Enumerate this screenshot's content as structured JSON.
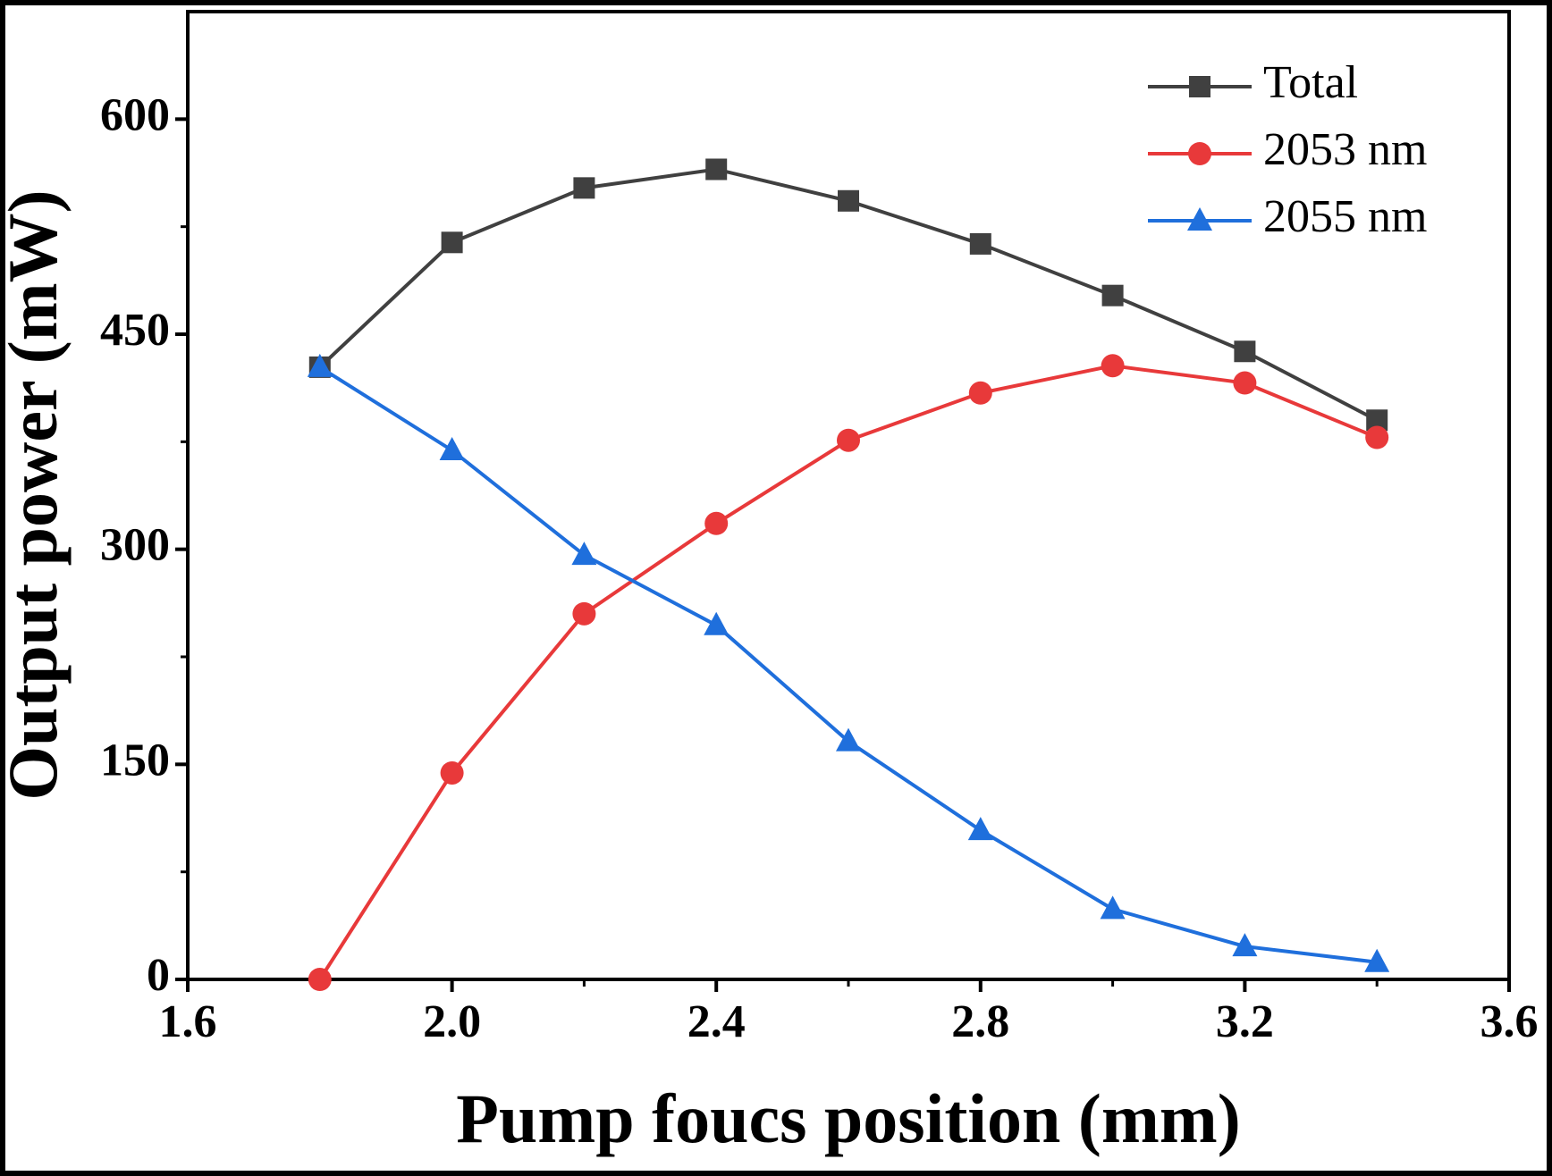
{
  "chart_data": {
    "type": "line",
    "x": [
      1.8,
      2.0,
      2.2,
      2.4,
      2.6,
      2.8,
      3.0,
      3.2,
      3.4
    ],
    "series": [
      {
        "name": "Total",
        "color": "#404040",
        "marker": "square",
        "values": [
          427,
          514,
          552,
          565,
          543,
          513,
          477,
          438,
          390
        ]
      },
      {
        "name": "2053 nm",
        "color": "#e8393a",
        "marker": "circle",
        "values": [
          0,
          144,
          255,
          318,
          376,
          409,
          428,
          416,
          378
        ]
      },
      {
        "name": "2055 nm",
        "color": "#1f6fdc",
        "marker": "triangle",
        "values": [
          427,
          369,
          296,
          247,
          166,
          104,
          49,
          23,
          12
        ]
      }
    ],
    "xlabel": "Pump foucs position (mm)",
    "ylabel": "Output power (mW)",
    "xlim": [
      1.6,
      3.6
    ],
    "xticks": [
      1.6,
      {
        "value": 2,
        "label": "2.0"
      },
      2.4,
      2.8,
      3.2,
      3.6
    ],
    "xminorticks": [
      1.8,
      2.2,
      2.6,
      3,
      3.4
    ],
    "ylim": [
      0,
      675
    ],
    "yticks": [
      0,
      150,
      300,
      450,
      600
    ],
    "yminorticks": [
      75,
      225,
      375,
      525
    ],
    "legend": "upper right"
  }
}
